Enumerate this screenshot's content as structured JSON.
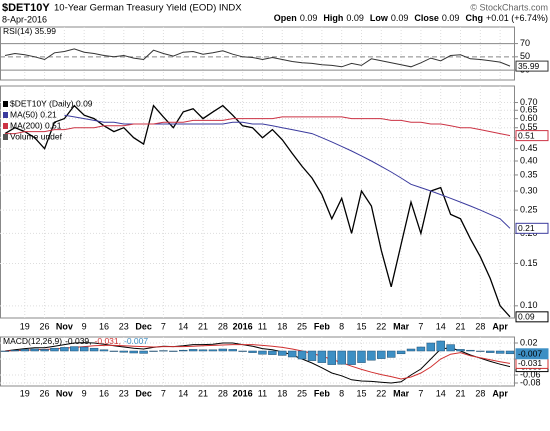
{
  "header": {
    "symbol": "$DET10Y",
    "name": "10-Year German Treasury Yield (EOD) INDX",
    "date": "8-Apr-2016",
    "copyright": "© StockCharts.com",
    "quote": [
      {
        "label": "Open",
        "value": 0.09
      },
      {
        "label": "High",
        "value": 0.09
      },
      {
        "label": "Low",
        "value": 0.09
      },
      {
        "label": "Close",
        "value": 0.09
      },
      {
        "label": "Chg",
        "value": "+0.01 (+6.74%)"
      }
    ]
  },
  "chart_data": [
    {
      "type": "line",
      "legend": [
        "RSI(14) 35.99"
      ],
      "ylim": [
        15,
        95
      ],
      "yticks": [
        30,
        50,
        70
      ],
      "series": [
        {
          "color": "#333333",
          "values": [
            52,
            55,
            53,
            50,
            46,
            56,
            58,
            62,
            57,
            55,
            52,
            50,
            52,
            48,
            46,
            60,
            55,
            51,
            57,
            58,
            54,
            56,
            59,
            54,
            50,
            49,
            46,
            49,
            46,
            43,
            41,
            40,
            38,
            37,
            35,
            40,
            37,
            47,
            44,
            41,
            38,
            35,
            41,
            48,
            44,
            52,
            53,
            47,
            46,
            44,
            42,
            35.99
          ]
        }
      ]
    },
    {
      "type": "line",
      "log_scale": true,
      "legend": [
        "$DET10Y (Daily) 0.09",
        "MA(50) 0.21",
        "MA(200) 0.51",
        "Volume undef"
      ],
      "categories": [
        null,
        null,
        "19",
        null,
        "26",
        null,
        "Nov",
        null,
        "9",
        null,
        "16",
        null,
        "23",
        null,
        "Dec",
        null,
        "7",
        null,
        "14",
        null,
        "21",
        null,
        "28",
        null,
        "2016",
        null,
        "11",
        null,
        "18",
        null,
        "25",
        null,
        "Feb",
        null,
        "8",
        null,
        "15",
        null,
        "22",
        null,
        "Mar",
        null,
        "7",
        null,
        "14",
        null,
        "21",
        null,
        "28",
        null,
        "Apr",
        null
      ],
      "ylim": [
        0.089,
        0.82
      ],
      "yticks": [
        {
          "value": 0.7,
          "label": "0.70"
        },
        0.65,
        {
          "value": 0.6,
          "label": "0.60"
        },
        0.55,
        {
          "value": 0.5,
          "label": "0.50"
        },
        0.45,
        {
          "value": 0.4,
          "label": "0.40"
        },
        0.35,
        {
          "value": 0.3,
          "label": "0.30"
        },
        0.25,
        {
          "value": 0.2,
          "label": "0.20"
        },
        0.15,
        {
          "value": 0.1,
          "label": "0.10"
        }
      ],
      "series": [
        {
          "color": "#000000",
          "values": [
            0.52,
            0.55,
            0.53,
            0.5,
            0.45,
            0.58,
            0.6,
            0.68,
            0.62,
            0.6,
            0.56,
            0.53,
            0.55,
            0.5,
            0.47,
            0.68,
            0.61,
            0.55,
            0.64,
            0.66,
            0.6,
            0.64,
            0.68,
            0.62,
            0.56,
            0.55,
            0.5,
            0.54,
            0.49,
            0.43,
            0.38,
            0.34,
            0.29,
            0.23,
            0.28,
            0.2,
            0.3,
            0.26,
            0.17,
            0.12,
            0.18,
            0.27,
            0.2,
            0.3,
            0.31,
            0.24,
            0.23,
            0.19,
            0.16,
            0.13,
            0.1,
            0.09
          ]
        },
        {
          "color": "#3b3b9e",
          "values": [
            null,
            null,
            null,
            null,
            null,
            null,
            0.62,
            0.61,
            0.6,
            0.59,
            0.58,
            0.58,
            0.57,
            0.57,
            0.57,
            0.57,
            0.57,
            0.57,
            0.57,
            0.57,
            0.57,
            0.57,
            0.57,
            0.58,
            0.58,
            0.57,
            0.57,
            0.56,
            0.55,
            0.54,
            0.53,
            0.52,
            0.5,
            0.48,
            0.46,
            0.44,
            0.42,
            0.4,
            0.38,
            0.36,
            0.34,
            0.32,
            0.31,
            0.3,
            0.29,
            0.28,
            0.27,
            0.26,
            0.25,
            0.24,
            0.23,
            0.21
          ]
        },
        {
          "color": "#cc3344",
          "values": [
            0.52,
            0.52,
            0.53,
            0.53,
            0.53,
            0.54,
            0.54,
            0.55,
            0.55,
            0.55,
            0.56,
            0.56,
            0.56,
            0.57,
            0.57,
            0.57,
            0.58,
            0.58,
            0.58,
            0.59,
            0.59,
            0.59,
            0.59,
            0.6,
            0.6,
            0.6,
            0.6,
            0.6,
            0.61,
            0.61,
            0.61,
            0.61,
            0.61,
            0.61,
            0.61,
            0.6,
            0.6,
            0.6,
            0.6,
            0.59,
            0.59,
            0.58,
            0.58,
            0.57,
            0.57,
            0.56,
            0.55,
            0.55,
            0.54,
            0.53,
            0.52,
            0.51
          ]
        }
      ]
    },
    {
      "type": "macd",
      "legend": [
        "MACD(12,26,9)",
        "-0.039,",
        "-0.031,",
        "-0.007"
      ],
      "categories": [
        null,
        null,
        "19",
        null,
        "26",
        null,
        "Nov",
        null,
        "9",
        null,
        "16",
        null,
        "23",
        null,
        "Dec",
        null,
        "7",
        null,
        "14",
        null,
        "21",
        null,
        "28",
        null,
        "2016",
        null,
        "11",
        null,
        "18",
        null,
        "25",
        null,
        "Feb",
        null,
        "8",
        null,
        "15",
        null,
        "22",
        null,
        "Mar",
        null,
        "7",
        null,
        "14",
        null,
        "21",
        null,
        "28",
        null,
        "Apr",
        null
      ],
      "ylim": [
        -0.0875,
        0.035
      ],
      "yticks": [
        0.02,
        -0.02,
        -0.06,
        -0.08
      ],
      "series": [
        {
          "color": "#000000",
          "values": [
            0.0,
            0.003,
            0.006,
            0.008,
            0.008,
            0.012,
            0.016,
            0.02,
            0.021,
            0.02,
            0.017,
            0.013,
            0.01,
            0.007,
            0.005,
            0.009,
            0.012,
            0.011,
            0.013,
            0.016,
            0.016,
            0.017,
            0.02,
            0.02,
            0.016,
            0.012,
            0.006,
            0.003,
            -0.002,
            -0.01,
            -0.02,
            -0.03,
            -0.042,
            -0.055,
            -0.062,
            -0.072,
            -0.075,
            -0.076,
            -0.078,
            -0.08,
            -0.077,
            -0.06,
            -0.045,
            -0.02,
            0.005,
            0.008,
            0.0,
            -0.01,
            -0.018,
            -0.026,
            -0.033,
            -0.039
          ]
        },
        {
          "color": "#d03030",
          "values": [
            0.0,
            0.001,
            0.002,
            0.003,
            0.004,
            0.005,
            0.007,
            0.009,
            0.011,
            0.013,
            0.014,
            0.014,
            0.013,
            0.012,
            0.011,
            0.01,
            0.011,
            0.011,
            0.011,
            0.012,
            0.013,
            0.014,
            0.015,
            0.016,
            0.016,
            0.016,
            0.014,
            0.012,
            0.009,
            0.005,
            0.0,
            -0.006,
            -0.013,
            -0.021,
            -0.029,
            -0.038,
            -0.046,
            -0.053,
            -0.059,
            -0.064,
            -0.07,
            -0.065,
            -0.055,
            -0.04,
            -0.02,
            -0.008,
            -0.004,
            -0.012,
            -0.017,
            -0.022,
            -0.027,
            -0.031
          ]
        },
        {
          "color": "#3d8fc4",
          "histogram": true,
          "values": [
            0.0,
            0.002,
            0.004,
            0.005,
            0.004,
            0.007,
            0.009,
            0.011,
            0.01,
            0.007,
            0.003,
            -0.001,
            -0.003,
            -0.005,
            -0.006,
            -0.001,
            0.001,
            0.0,
            0.002,
            0.004,
            0.003,
            0.003,
            0.005,
            0.004,
            0.0,
            -0.004,
            -0.008,
            -0.009,
            -0.011,
            -0.015,
            -0.02,
            -0.024,
            -0.029,
            -0.034,
            -0.033,
            -0.034,
            -0.029,
            -0.023,
            -0.019,
            -0.016,
            -0.007,
            0.005,
            0.01,
            0.02,
            0.025,
            0.016,
            0.004,
            0.002,
            -0.001,
            -0.004,
            -0.006,
            -0.007
          ]
        }
      ]
    }
  ]
}
